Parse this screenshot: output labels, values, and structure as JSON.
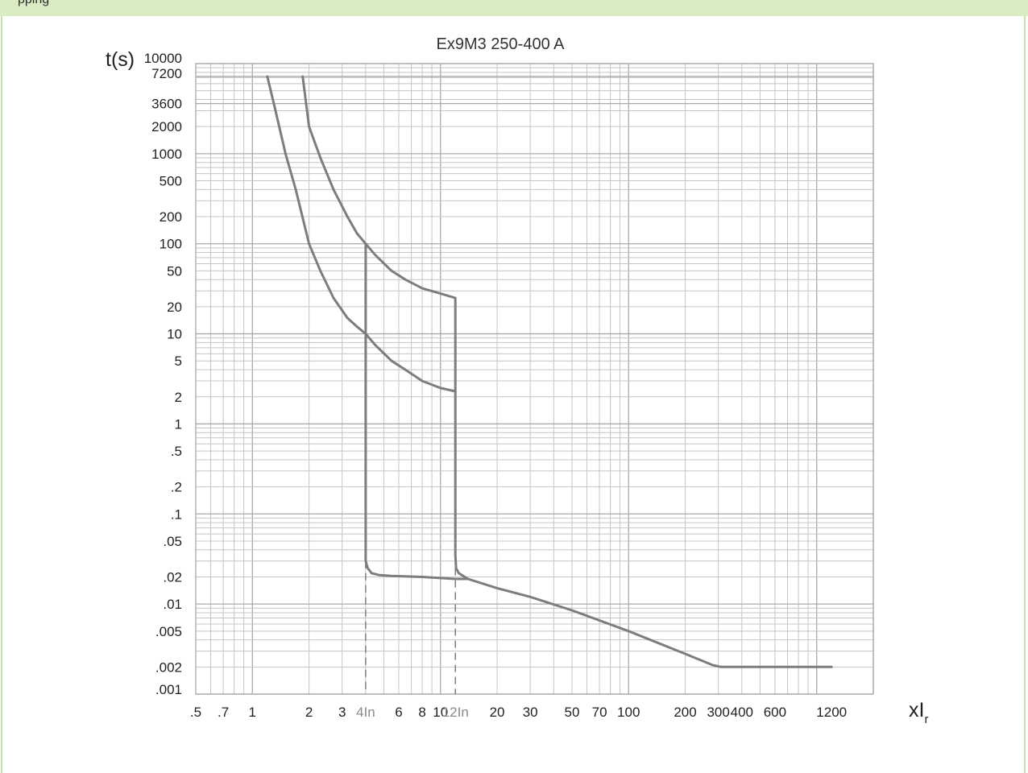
{
  "page": {
    "header_fragment": "pping",
    "colors": {
      "frame": "#c6e2a6",
      "topbar": "#d9ecc2",
      "curve": "#7d7d7d",
      "grid": "#c4c4c4"
    }
  },
  "chart_data": {
    "type": "line",
    "title": "Ex9M3 250-400 A",
    "ylabel": "t(s)",
    "xlabel_main": "xI",
    "xlabel_sub": "r",
    "xscale": "log",
    "yscale": "log",
    "grid": true,
    "xlim": [
      0.5,
      2000
    ],
    "ylim": [
      0.001,
      10000
    ],
    "x_ticks": [
      {
        "value": 0.5,
        "label": ".5"
      },
      {
        "value": 0.7,
        "label": ".7"
      },
      {
        "value": 1,
        "label": "1"
      },
      {
        "value": 2,
        "label": "2"
      },
      {
        "value": 3,
        "label": "3"
      },
      {
        "value": 4,
        "label": "4In",
        "grey": true
      },
      {
        "value": 6,
        "label": "6"
      },
      {
        "value": 8,
        "label": "8"
      },
      {
        "value": 10,
        "label": "10"
      },
      {
        "value": 12,
        "label": "12In",
        "grey": true
      },
      {
        "value": 20,
        "label": "20"
      },
      {
        "value": 30,
        "label": "30"
      },
      {
        "value": 50,
        "label": "50"
      },
      {
        "value": 70,
        "label": "70"
      },
      {
        "value": 100,
        "label": "100"
      },
      {
        "value": 200,
        "label": "200"
      },
      {
        "value": 300,
        "label": "300"
      },
      {
        "value": 400,
        "label": "400"
      },
      {
        "value": 600,
        "label": "600"
      },
      {
        "value": 1200,
        "label": "1200"
      }
    ],
    "y_ticks": [
      {
        "value": 10000,
        "label": "10000"
      },
      {
        "value": 7200,
        "label": "7200"
      },
      {
        "value": 3600,
        "label": "3600"
      },
      {
        "value": 2000,
        "label": "2000"
      },
      {
        "value": 1000,
        "label": "1000"
      },
      {
        "value": 500,
        "label": "500"
      },
      {
        "value": 200,
        "label": "200"
      },
      {
        "value": 100,
        "label": "100"
      },
      {
        "value": 50,
        "label": "50"
      },
      {
        "value": 20,
        "label": "20"
      },
      {
        "value": 10,
        "label": "10"
      },
      {
        "value": 5,
        "label": "5"
      },
      {
        "value": 2,
        "label": "2"
      },
      {
        "value": 1,
        "label": "1"
      },
      {
        "value": 0.5,
        "label": ".5"
      },
      {
        "value": 0.2,
        "label": ".2"
      },
      {
        "value": 0.1,
        "label": ".1"
      },
      {
        "value": 0.05,
        "label": ".05"
      },
      {
        "value": 0.02,
        "label": ".02"
      },
      {
        "value": 0.01,
        "label": ".01"
      },
      {
        "value": 0.005,
        "label": ".005"
      },
      {
        "value": 0.002,
        "label": ".002"
      },
      {
        "value": 0.001,
        "label": ".001"
      }
    ],
    "series": [
      {
        "x": [
          1.85,
          2,
          2.3,
          2.7,
          3.2,
          3.6,
          4,
          4.5,
          5.5,
          6.5,
          8,
          10,
          12,
          12,
          12,
          12.1,
          12.5,
          14,
          20,
          30,
          50,
          100,
          200,
          280,
          310,
          1200
        ],
        "y": [
          7200,
          2000,
          900,
          400,
          200,
          130,
          100,
          75,
          50,
          40,
          32,
          28,
          25,
          25,
          0.035,
          0.025,
          0.022,
          0.019,
          0.015,
          0.012,
          0.0085,
          0.005,
          0.0028,
          0.0021,
          0.002,
          0.002
        ]
      },
      {
        "x": [
          1.2,
          1.3,
          1.5,
          1.7,
          2,
          2.3,
          2.7,
          3.2,
          3.6,
          4,
          4.5,
          5.5,
          6.5,
          8,
          10,
          12
        ],
        "y": [
          7200,
          3600,
          1000,
          400,
          100,
          50,
          25,
          15,
          12,
          10,
          7.5,
          5,
          4,
          3,
          2.5,
          2.3
        ]
      },
      {
        "x": [
          4,
          4,
          4,
          4.1,
          4.3,
          4.7,
          5.5,
          8,
          12,
          14
        ],
        "y": [
          100,
          0.035,
          0.03,
          0.025,
          0.022,
          0.021,
          0.0205,
          0.02,
          0.019,
          0.019
        ]
      }
    ],
    "reference_lines": [
      {
        "x": 4,
        "from": 0.001,
        "to": 0.03,
        "style": "dashed"
      },
      {
        "x": 12,
        "from": 0.001,
        "to": 0.025,
        "style": "dashed"
      }
    ]
  }
}
